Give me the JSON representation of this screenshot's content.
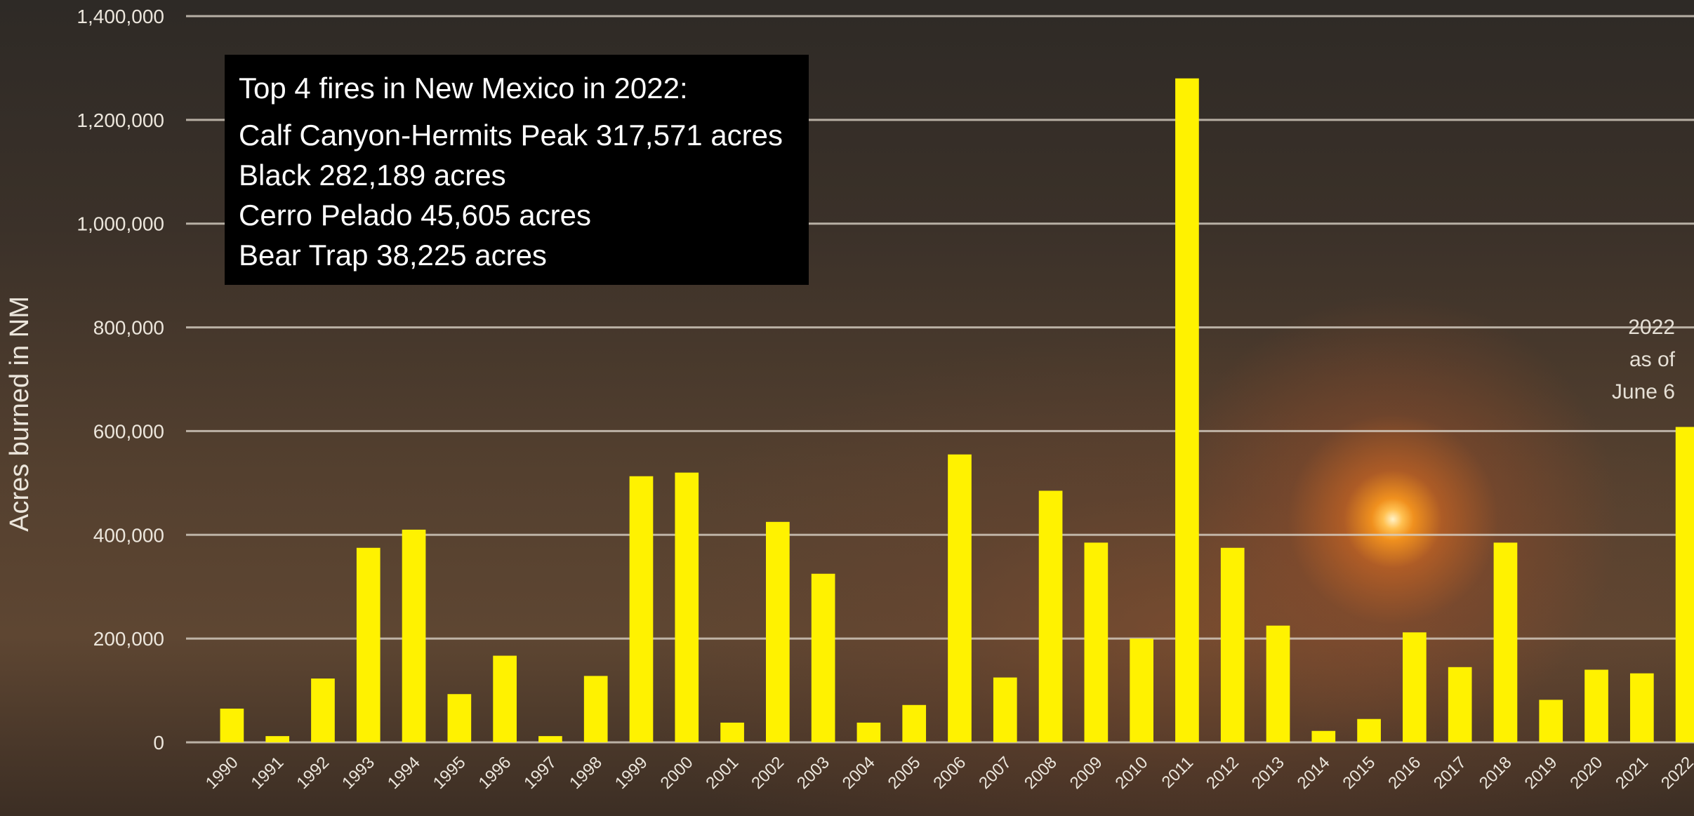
{
  "chart_data": {
    "type": "bar",
    "title": "",
    "xlabel": "",
    "ylabel": "Acres burned in NM",
    "ylim": [
      0,
      1400000
    ],
    "yticks": [
      0,
      200000,
      400000,
      600000,
      800000,
      1000000,
      1200000,
      1400000
    ],
    "ytick_labels": [
      "0",
      "200,000",
      "400,000",
      "600,000",
      "800,000",
      "1,000,000",
      "1,200,000",
      "1,400,000"
    ],
    "grid": true,
    "bar_color": "#fff200",
    "categories": [
      "1990",
      "1991",
      "1992",
      "1993",
      "1994",
      "1995",
      "1996",
      "1997",
      "1998",
      "1999",
      "2000",
      "2001",
      "2002",
      "2003",
      "2004",
      "2005",
      "2006",
      "2007",
      "2008",
      "2009",
      "2010",
      "2011",
      "2012",
      "2013",
      "2014",
      "2015",
      "2016",
      "2017",
      "2018",
      "2019",
      "2020",
      "2021",
      "2022"
    ],
    "values": [
      65000,
      12000,
      123000,
      375000,
      410000,
      93000,
      167000,
      12000,
      128000,
      513000,
      520000,
      38000,
      425000,
      325000,
      38000,
      72000,
      555000,
      125000,
      485000,
      385000,
      200000,
      1280000,
      375000,
      225000,
      22000,
      45000,
      212000,
      145000,
      385000,
      82000,
      140000,
      133000,
      608000
    ],
    "annotation": [
      "2022",
      "as of",
      "June 6"
    ]
  },
  "infobox": {
    "title": "Top 4 fires in New Mexico in 2022:",
    "fires": [
      "Calf Canyon-Hermits Peak 317,571 acres",
      "Black 282,189 acres",
      "Cerro Pelado 45,605 acres",
      "Bear Trap 38,225 acres"
    ]
  }
}
